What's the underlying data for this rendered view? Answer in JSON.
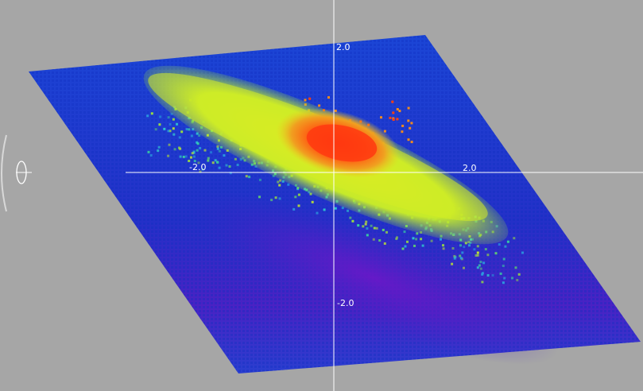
{
  "axis_labels": {
    "top": "2.0",
    "left": "-2.0",
    "right": "2.0",
    "bottom": "-2.0"
  },
  "colors": {
    "background": "#a6a6a6",
    "axis_line": "#ffffff",
    "colormap_low": "#5a1fd0",
    "colormap_base": "#1e4fd8",
    "colormap_mid": "#d8f02a",
    "colormap_high": "#ff3a10"
  },
  "widgets": {
    "rotation_handle_icon": "ellipse-rotate-icon"
  }
}
